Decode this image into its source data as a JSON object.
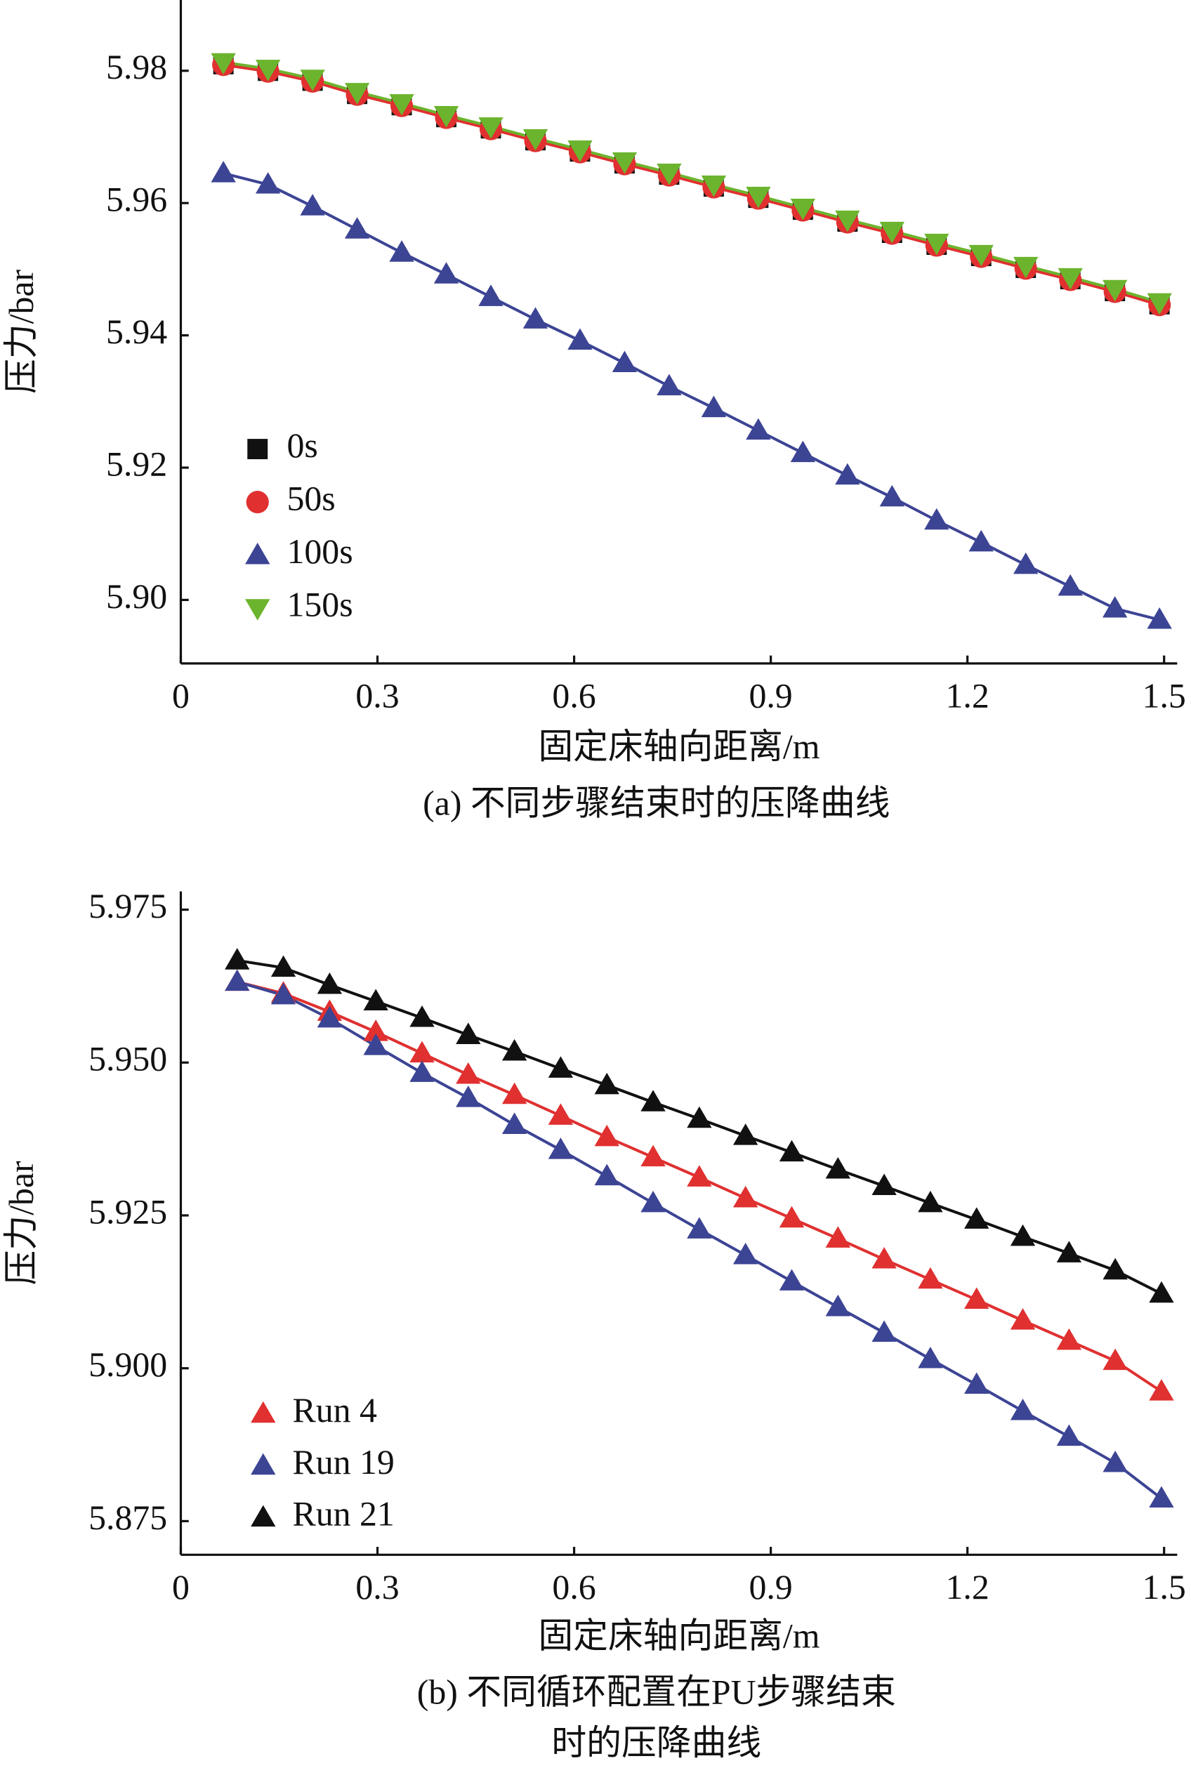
{
  "chart_data": [
    {
      "type": "line",
      "x_label": "固定床轴向距离/m",
      "y_label": "压力/bar",
      "caption": [
        "(a) 不同步骤结束时的压降曲线"
      ],
      "x": [
        0.065,
        0.133,
        0.201,
        0.269,
        0.337,
        0.405,
        0.473,
        0.541,
        0.609,
        0.677,
        0.745,
        0.813,
        0.881,
        0.949,
        1.017,
        1.085,
        1.153,
        1.221,
        1.289,
        1.357,
        1.425,
        1.493
      ],
      "series": [
        {
          "name": "0s",
          "color": "#111111",
          "marker": "square",
          "values": [
            5.981,
            5.98,
            5.9785,
            5.9765,
            5.9748,
            5.973,
            5.9713,
            5.9695,
            5.9678,
            5.966,
            5.9643,
            5.9625,
            5.9608,
            5.959,
            5.9572,
            5.9555,
            5.9537,
            5.952,
            5.9502,
            5.9485,
            5.9467,
            5.9447
          ]
        },
        {
          "name": "50s",
          "color": "#e03030",
          "marker": "circle",
          "values": [
            5.9809,
            5.9799,
            5.9784,
            5.9764,
            5.9747,
            5.9729,
            5.9712,
            5.9694,
            5.9677,
            5.9659,
            5.9642,
            5.9624,
            5.9607,
            5.9589,
            5.9571,
            5.9554,
            5.9536,
            5.9519,
            5.9501,
            5.9484,
            5.9466,
            5.9446
          ]
        },
        {
          "name": "100s",
          "color": "#3c4494",
          "marker": "triangle-up",
          "values": [
            5.9645,
            5.9628,
            5.9595,
            5.956,
            5.9525,
            5.9492,
            5.9458,
            5.9424,
            5.9392,
            5.9358,
            5.9323,
            5.929,
            5.9256,
            5.9222,
            5.9188,
            5.9155,
            5.912,
            5.9087,
            5.9053,
            5.902,
            5.8987,
            5.897
          ]
        },
        {
          "name": "150s",
          "color": "#6cb42e",
          "marker": "triangle-down",
          "values": [
            5.9813,
            5.9803,
            5.9788,
            5.9768,
            5.9751,
            5.9733,
            5.9716,
            5.9698,
            5.9681,
            5.9663,
            5.9646,
            5.9628,
            5.9611,
            5.9593,
            5.9575,
            5.9558,
            5.954,
            5.9523,
            5.9505,
            5.9488,
            5.947,
            5.945
          ]
        }
      ],
      "xlim": [
        0,
        1.52
      ],
      "ylim": [
        5.8904,
        5.9907
      ],
      "xticks": [
        0,
        0.3,
        0.6,
        0.9,
        1.2,
        1.5
      ],
      "yticks": [
        {
          "value": 5.9,
          "label": "5.90"
        },
        5.92,
        5.94,
        5.96,
        5.98
      ],
      "legend": "lower left"
    },
    {
      "type": "line",
      "x_label": "固定床轴向距离/m",
      "y_label": "压力/bar",
      "caption": [
        "(b) 不同循环配置在PU步骤结束",
        "时的压降曲线"
      ],
      "x": [
        0.086,
        0.1565,
        0.227,
        0.2975,
        0.368,
        0.4385,
        0.509,
        0.5795,
        0.65,
        0.7205,
        0.791,
        0.8615,
        0.932,
        1.0025,
        1.073,
        1.1435,
        1.214,
        1.2845,
        1.355,
        1.4255,
        1.496
      ],
      "series": [
        {
          "name": "Run 4",
          "color": "#e03030",
          "marker": "triangle-up",
          "values": [
            5.9632,
            5.9613,
            5.9583,
            5.955,
            5.9515,
            5.948,
            5.9447,
            5.9413,
            5.9378,
            5.9345,
            5.9312,
            5.9278,
            5.9245,
            5.9212,
            5.9178,
            5.9145,
            5.9112,
            5.9078,
            5.9045,
            5.9012,
            5.8962
          ]
        },
        {
          "name": "Run 19",
          "color": "#3c4494",
          "marker": "triangle-up",
          "values": [
            5.9632,
            5.961,
            5.9572,
            5.9527,
            5.9483,
            5.9442,
            5.9398,
            5.9357,
            5.9314,
            5.927,
            5.9227,
            5.9185,
            5.9142,
            5.91,
            5.9058,
            5.9015,
            5.8973,
            5.893,
            5.8888,
            5.8845,
            5.8787
          ]
        },
        {
          "name": "Run 21",
          "color": "#111111",
          "marker": "triangle-up",
          "values": [
            5.9667,
            5.9655,
            5.9627,
            5.96,
            5.9573,
            5.9545,
            5.9518,
            5.949,
            5.9463,
            5.9435,
            5.9408,
            5.938,
            5.9353,
            5.9325,
            5.9298,
            5.927,
            5.9243,
            5.9215,
            5.9188,
            5.916,
            5.9122
          ]
        }
      ],
      "xlim": [
        0,
        1.52
      ],
      "ylim": [
        5.8695,
        5.978
      ],
      "xticks": [
        0,
        0.3,
        0.6,
        0.9,
        1.2,
        1.5
      ],
      "yticks": [
        5.875,
        {
          "value": 5.9,
          "label": "5.900"
        },
        5.925,
        {
          "value": 5.95,
          "label": "5.950"
        },
        5.975
      ],
      "legend": "lower left"
    }
  ]
}
